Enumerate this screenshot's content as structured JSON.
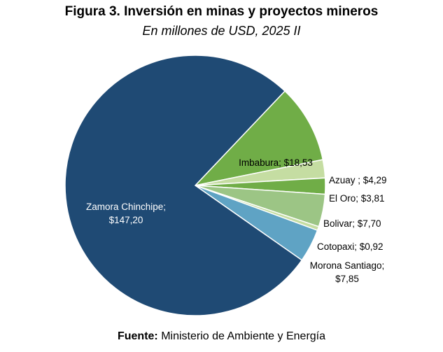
{
  "chart_data": {
    "type": "pie",
    "title": "Figura 3. Inversión en minas y proyectos mineros",
    "subtitle": "En millones de USD, 2025 II",
    "source_label": "Fuente:",
    "source_text": "Ministerio de Ambiente y Energía",
    "slices": [
      {
        "label": "Imbabura",
        "value_text": "$18,53",
        "value": 18.53,
        "color": "#70AD47"
      },
      {
        "label": "Azuay",
        "value_text": "$4,29",
        "value": 4.29,
        "color": "#C5DDA2"
      },
      {
        "label": "El Oro",
        "value_text": "$3,81",
        "value": 3.81,
        "color": "#70AD47"
      },
      {
        "label": "Bolivar",
        "value_text": "$7,70",
        "value": 7.7,
        "color": "#9CC585"
      },
      {
        "label": "Cotopaxi",
        "value_text": "$0,92",
        "value": 0.92,
        "color": "#C5DDA2"
      },
      {
        "label": "Morona Santiago",
        "value_text": "$7,85",
        "value": 7.85,
        "color": "#5FA3C4"
      },
      {
        "label": "Zamora Chinchipe",
        "value_text": "$147,20",
        "value": 147.2,
        "color": "#1F4A74"
      }
    ]
  }
}
